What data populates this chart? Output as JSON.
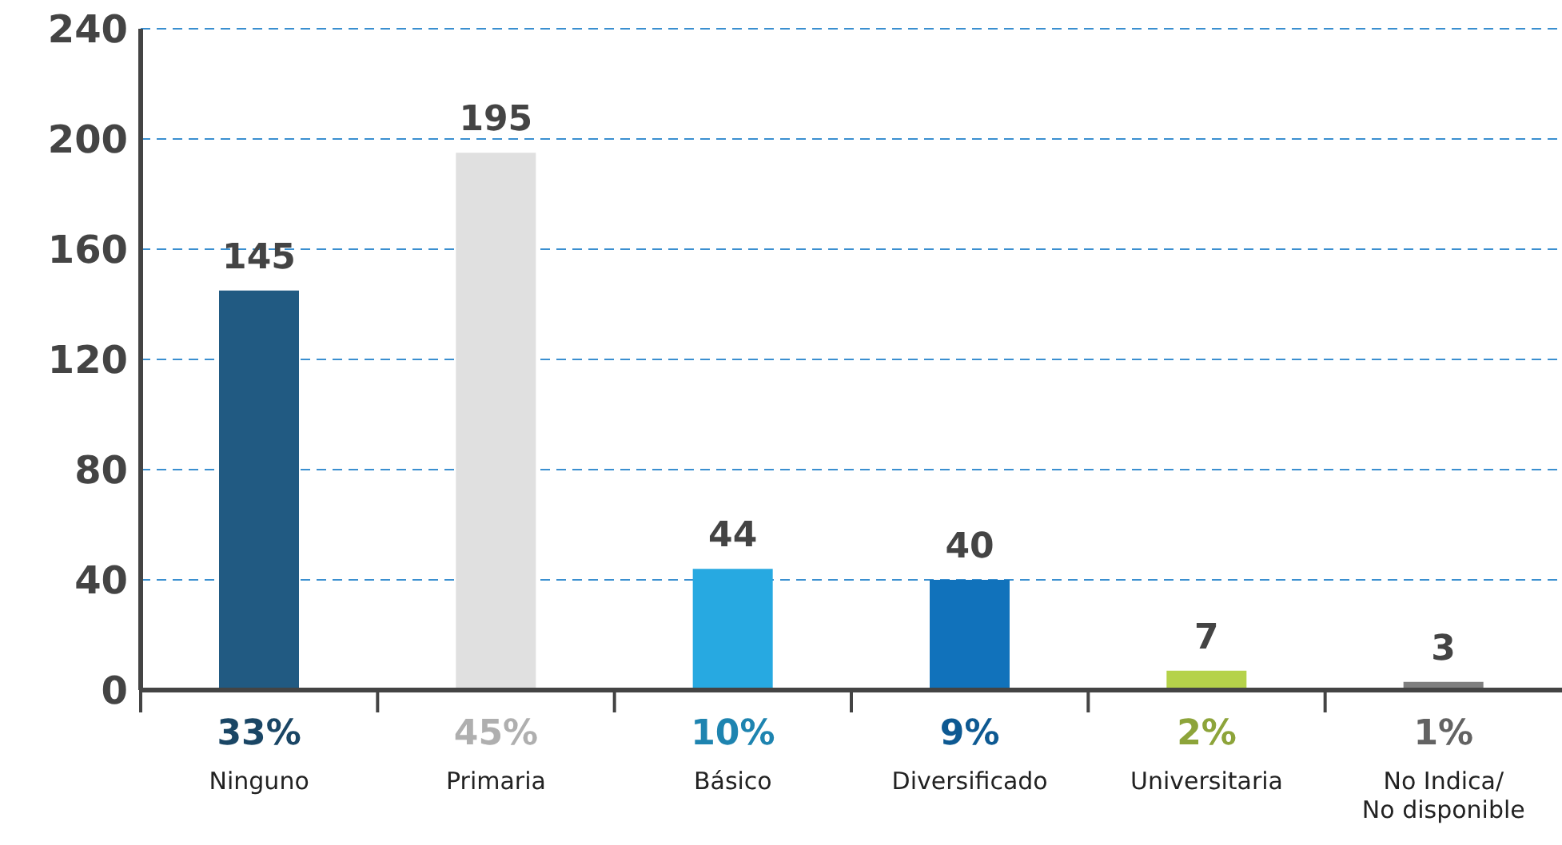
{
  "chart_data": {
    "type": "bar",
    "categories": [
      "Ninguno",
      "Primaria",
      "Básico",
      "Diversificado",
      "Universitaria",
      "No Indica/\nNo disponible"
    ],
    "values": [
      145,
      195,
      44,
      40,
      7,
      3
    ],
    "colors": [
      "#215a82",
      "#e0e0e0",
      "#27a9e1",
      "#1172bb",
      "#b5d24a",
      "#7f7f7f"
    ],
    "ylim": [
      0,
      240
    ],
    "yticks": [
      0,
      40,
      80,
      120,
      160,
      200,
      240
    ],
    "grid": "y",
    "data_labels": true,
    "annotations": [
      "33%",
      "45%",
      "10%",
      "9%",
      "2%",
      "1%"
    ]
  }
}
